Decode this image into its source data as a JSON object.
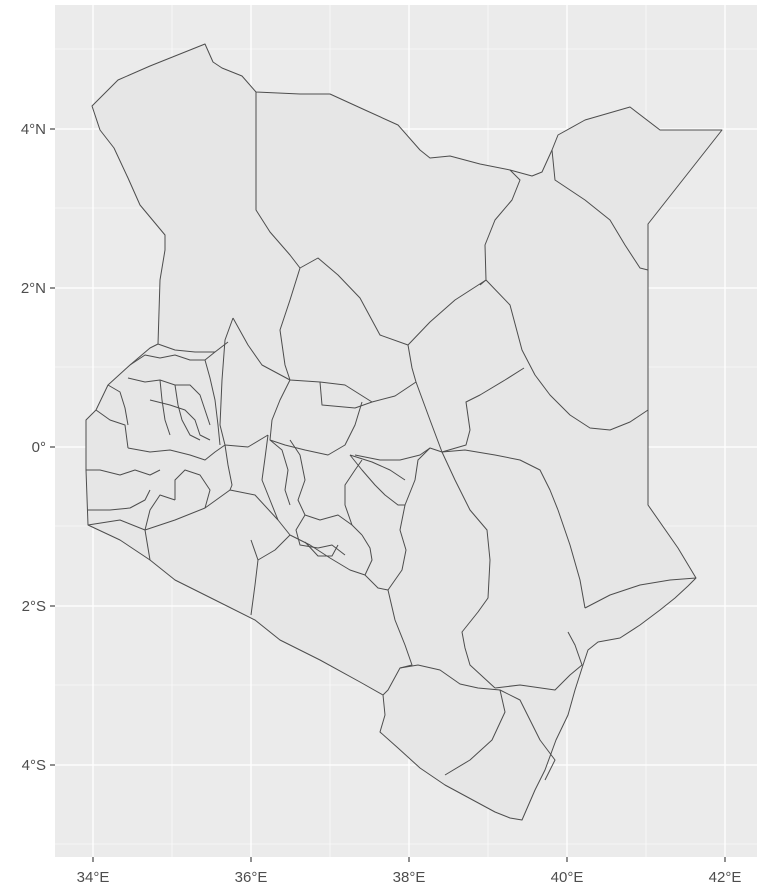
{
  "map": {
    "type": "choropleth-outline",
    "region": "Kenya",
    "x_ticks": [
      "34°E",
      "36°E",
      "38°E",
      "40°E",
      "42°E"
    ],
    "y_ticks": [
      "4°N",
      "2°N",
      "0°",
      "2°S",
      "4°S"
    ],
    "x_tick_values": [
      34,
      36,
      38,
      40,
      42
    ],
    "y_tick_values": [
      4,
      2,
      0,
      -2,
      -4
    ],
    "x_range": [
      33.5,
      42.4
    ],
    "y_range": [
      -5.3,
      5.5
    ],
    "panel_color": "#ebebeb",
    "grid_color": "#ffffff",
    "fill_color": "#e6e6e6",
    "border_color": "#4d4d4d"
  }
}
